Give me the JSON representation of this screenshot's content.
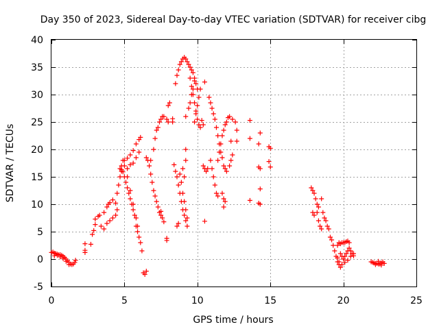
{
  "chart_data": {
    "type": "scatter",
    "title": "Day 350 of 2023, Sidereal Day-to-day VTEC variation (SDTVAR) for receiver cibg",
    "xlabel": "GPS time / hours",
    "ylabel": "SDTVAR / TECUs",
    "xlim": [
      0,
      25
    ],
    "ylim": [
      -5,
      40
    ],
    "xticks": [
      0,
      5,
      10,
      15,
      20,
      25
    ],
    "yticks": [
      -5,
      0,
      5,
      10,
      15,
      20,
      25,
      30,
      35,
      40
    ],
    "grid": true,
    "marker": "+",
    "color": "#ff0000",
    "series": [
      {
        "name": "sdtvar",
        "points": [
          [
            0.0,
            1.2
          ],
          [
            0.1,
            1.3
          ],
          [
            0.2,
            1.1
          ],
          [
            0.3,
            1.0
          ],
          [
            0.4,
            0.9
          ],
          [
            0.5,
            0.8
          ],
          [
            0.6,
            0.8
          ],
          [
            0.7,
            0.7
          ],
          [
            0.8,
            0.5
          ],
          [
            0.9,
            0.3
          ],
          [
            1.0,
            0.0
          ],
          [
            1.1,
            -0.3
          ],
          [
            1.2,
            -0.6
          ],
          [
            1.3,
            -0.9
          ],
          [
            1.4,
            -1.0
          ],
          [
            1.5,
            -0.9
          ],
          [
            1.6,
            -0.6
          ],
          [
            1.65,
            -0.2
          ],
          [
            0.2,
            0.6
          ],
          [
            0.4,
            0.7
          ],
          [
            0.6,
            0.4
          ],
          [
            0.8,
            0.1
          ],
          [
            1.0,
            -0.4
          ],
          [
            1.2,
            -1.0
          ],
          [
            2.3,
            1.2
          ],
          [
            2.3,
            1.6
          ],
          [
            2.3,
            2.8
          ],
          [
            2.7,
            2.7
          ],
          [
            2.8,
            4.5
          ],
          [
            2.9,
            5.2
          ],
          [
            3.0,
            6.3
          ],
          [
            3.0,
            7.3
          ],
          [
            3.2,
            7.8
          ],
          [
            3.3,
            8.0
          ],
          [
            3.4,
            6.0
          ],
          [
            3.6,
            8.5
          ],
          [
            3.8,
            9.5
          ],
          [
            3.9,
            10.0
          ],
          [
            4.0,
            10.3
          ],
          [
            4.2,
            10.8
          ],
          [
            3.6,
            5.5
          ],
          [
            3.8,
            6.5
          ],
          [
            4.0,
            7.0
          ],
          [
            4.2,
            7.5
          ],
          [
            4.4,
            10.2
          ],
          [
            4.5,
            12.0
          ],
          [
            4.6,
            13.5
          ],
          [
            4.7,
            15.0
          ],
          [
            4.8,
            16.0
          ],
          [
            4.4,
            8.0
          ],
          [
            4.5,
            9.0
          ],
          [
            4.8,
            17.0
          ],
          [
            5.0,
            18.0
          ],
          [
            5.2,
            18.4
          ],
          [
            5.4,
            19.0
          ],
          [
            5.6,
            19.8
          ],
          [
            5.8,
            21.0
          ],
          [
            6.0,
            21.8
          ],
          [
            6.1,
            22.2
          ],
          [
            5.2,
            16.5
          ],
          [
            5.4,
            17.2
          ],
          [
            5.6,
            17.5
          ],
          [
            5.8,
            18.5
          ],
          [
            6.0,
            19.5
          ],
          [
            4.7,
            16.5
          ],
          [
            4.8,
            16.3
          ],
          [
            4.9,
            15.9
          ],
          [
            5.0,
            15.0
          ],
          [
            5.1,
            14.0
          ],
          [
            5.2,
            13.0
          ],
          [
            5.3,
            12.0
          ],
          [
            5.4,
            11.0
          ],
          [
            5.5,
            10.0
          ],
          [
            5.6,
            9.0
          ],
          [
            5.7,
            8.0
          ],
          [
            5.8,
            6.0
          ],
          [
            5.9,
            5.0
          ],
          [
            6.0,
            4.0
          ],
          [
            6.1,
            3.0
          ],
          [
            6.2,
            1.5
          ],
          [
            4.9,
            18.0
          ],
          [
            5.0,
            17.0
          ],
          [
            5.2,
            15.0
          ],
          [
            5.4,
            12.5
          ],
          [
            5.6,
            10.0
          ],
          [
            5.8,
            7.5
          ],
          [
            5.9,
            6.0
          ],
          [
            6.3,
            -2.5
          ],
          [
            6.4,
            -2.8
          ],
          [
            6.5,
            -2.2
          ],
          [
            6.5,
            18.5
          ],
          [
            6.6,
            18.0
          ],
          [
            6.7,
            17.0
          ],
          [
            6.8,
            15.5
          ],
          [
            6.9,
            14.0
          ],
          [
            7.0,
            12.5
          ],
          [
            7.1,
            11.5
          ],
          [
            7.2,
            10.5
          ],
          [
            7.3,
            9.5
          ],
          [
            7.4,
            8.5
          ],
          [
            7.5,
            8.0
          ],
          [
            7.6,
            7.5
          ],
          [
            7.7,
            6.8
          ],
          [
            6.8,
            18.0
          ],
          [
            7.0,
            20.0
          ],
          [
            7.1,
            22.0
          ],
          [
            7.2,
            23.5
          ],
          [
            7.3,
            24.0
          ],
          [
            7.4,
            25.0
          ],
          [
            7.5,
            25.5
          ],
          [
            7.6,
            26.0
          ],
          [
            7.7,
            26.0
          ],
          [
            7.9,
            25.5
          ],
          [
            8.0,
            25.0
          ],
          [
            8.0,
            28.0
          ],
          [
            8.1,
            28.5
          ],
          [
            7.9,
            3.8
          ],
          [
            7.9,
            3.4
          ],
          [
            7.5,
            8.7
          ],
          [
            8.3,
            25.6
          ],
          [
            8.3,
            25.0
          ],
          [
            8.4,
            17.2
          ],
          [
            8.5,
            16.0
          ],
          [
            8.6,
            15.0
          ],
          [
            8.7,
            13.5
          ],
          [
            8.8,
            12.0
          ],
          [
            8.9,
            10.5
          ],
          [
            9.0,
            9.0
          ],
          [
            9.1,
            8.0
          ],
          [
            9.2,
            7.0
          ],
          [
            9.3,
            6.0
          ],
          [
            8.8,
            15.5
          ],
          [
            8.9,
            14.0
          ],
          [
            9.0,
            12.0
          ],
          [
            9.1,
            10.5
          ],
          [
            9.2,
            9.0
          ],
          [
            9.3,
            7.5
          ],
          [
            8.6,
            6.0
          ],
          [
            8.7,
            6.5
          ],
          [
            9.2,
            18.0
          ],
          [
            9.2,
            20.0
          ],
          [
            9.0,
            16.5
          ],
          [
            9.1,
            15.0
          ],
          [
            8.5,
            32.0
          ],
          [
            8.6,
            33.5
          ],
          [
            8.7,
            34.5
          ],
          [
            8.8,
            35.5
          ],
          [
            8.9,
            36.0
          ],
          [
            9.0,
            36.5
          ],
          [
            9.1,
            36.8
          ],
          [
            9.2,
            36.5
          ],
          [
            9.3,
            36.0
          ],
          [
            9.4,
            35.5
          ],
          [
            9.5,
            35.0
          ],
          [
            9.6,
            34.5
          ],
          [
            9.7,
            34.0
          ],
          [
            9.8,
            33.0
          ],
          [
            9.9,
            32.0
          ],
          [
            10.0,
            31.0
          ],
          [
            9.2,
            26.0
          ],
          [
            9.4,
            27.5
          ],
          [
            9.5,
            28.5
          ],
          [
            9.6,
            30.0
          ],
          [
            9.7,
            31.0
          ],
          [
            9.8,
            32.5
          ],
          [
            9.5,
            33.0
          ],
          [
            9.6,
            31.5
          ],
          [
            9.7,
            30.0
          ],
          [
            9.8,
            28.5
          ],
          [
            9.9,
            27.0
          ],
          [
            10.0,
            25.5
          ],
          [
            10.1,
            24.5
          ],
          [
            10.2,
            24.0
          ],
          [
            9.8,
            25.0
          ],
          [
            9.9,
            26.5
          ],
          [
            10.0,
            28.0
          ],
          [
            10.1,
            29.5
          ],
          [
            10.2,
            31.0
          ],
          [
            10.3,
            25.3
          ],
          [
            10.4,
            24.5
          ],
          [
            10.5,
            32.3
          ],
          [
            10.4,
            17.0
          ],
          [
            10.5,
            16.5
          ],
          [
            10.6,
            16.0
          ],
          [
            10.7,
            16.5
          ],
          [
            10.5,
            6.9
          ],
          [
            10.8,
            29.5
          ],
          [
            10.9,
            28.5
          ],
          [
            11.0,
            27.5
          ],
          [
            11.1,
            26.5
          ],
          [
            11.2,
            25.5
          ],
          [
            11.3,
            24.0
          ],
          [
            11.4,
            22.5
          ],
          [
            11.5,
            21.0
          ],
          [
            11.6,
            19.5
          ],
          [
            11.7,
            18.5
          ],
          [
            11.8,
            17.0
          ],
          [
            11.9,
            16.5
          ],
          [
            12.0,
            16.0
          ],
          [
            10.9,
            18.0
          ],
          [
            11.0,
            16.5
          ],
          [
            11.1,
            15.0
          ],
          [
            11.2,
            13.5
          ],
          [
            11.3,
            12.0
          ],
          [
            11.4,
            11.5
          ],
          [
            11.4,
            18.0
          ],
          [
            11.5,
            19.5
          ],
          [
            11.6,
            21.0
          ],
          [
            11.7,
            22.5
          ],
          [
            11.8,
            23.5
          ],
          [
            11.9,
            24.5
          ],
          [
            12.0,
            25.0
          ],
          [
            12.1,
            25.8
          ],
          [
            12.2,
            26.0
          ],
          [
            12.4,
            25.5
          ],
          [
            12.6,
            25.0
          ],
          [
            11.7,
            12.0
          ],
          [
            11.8,
            11.0
          ],
          [
            11.8,
            9.5
          ],
          [
            11.9,
            10.5
          ],
          [
            12.2,
            17.0
          ],
          [
            12.3,
            18.0
          ],
          [
            12.4,
            19.0
          ],
          [
            12.3,
            21.5
          ],
          [
            12.7,
            21.5
          ],
          [
            12.7,
            23.5
          ],
          [
            13.6,
            25.3
          ],
          [
            13.6,
            22.0
          ],
          [
            13.6,
            10.7
          ],
          [
            14.2,
            21.0
          ],
          [
            14.3,
            23.0
          ],
          [
            14.3,
            16.5
          ],
          [
            14.2,
            16.8
          ],
          [
            14.3,
            12.8
          ],
          [
            14.2,
            10.2
          ],
          [
            14.3,
            10.0
          ],
          [
            14.9,
            20.5
          ],
          [
            15.0,
            20.2
          ],
          [
            14.9,
            17.8
          ],
          [
            15.0,
            16.8
          ],
          [
            17.8,
            13.0
          ],
          [
            17.9,
            12.5
          ],
          [
            18.0,
            12.0
          ],
          [
            18.1,
            11.0
          ],
          [
            18.2,
            10.0
          ],
          [
            18.3,
            9.5
          ],
          [
            18.2,
            8.5
          ],
          [
            18.3,
            7.0
          ],
          [
            18.0,
            8.0
          ],
          [
            17.9,
            8.5
          ],
          [
            18.4,
            6.0
          ],
          [
            18.5,
            5.5
          ],
          [
            18.5,
            11.0
          ],
          [
            18.6,
            8.5
          ],
          [
            18.7,
            7.5
          ],
          [
            18.8,
            7.0
          ],
          [
            18.9,
            6.0
          ],
          [
            19.0,
            5.5
          ],
          [
            19.1,
            4.0
          ],
          [
            19.2,
            3.5
          ],
          [
            19.3,
            2.5
          ],
          [
            19.4,
            1.5
          ],
          [
            19.5,
            0.5
          ],
          [
            19.6,
            -0.5
          ],
          [
            19.7,
            -1.0
          ],
          [
            19.8,
            -1.5
          ],
          [
            19.6,
            2.5
          ],
          [
            19.7,
            3.0
          ],
          [
            19.8,
            2.8
          ],
          [
            19.9,
            3.0
          ],
          [
            20.0,
            3.0
          ],
          [
            20.1,
            3.0
          ],
          [
            20.2,
            3.2
          ],
          [
            20.3,
            3.3
          ],
          [
            20.4,
            3.0
          ],
          [
            19.8,
            1.0
          ],
          [
            19.9,
            0.5
          ],
          [
            20.0,
            0.0
          ],
          [
            20.1,
            0.5
          ],
          [
            20.2,
            1.0
          ],
          [
            20.3,
            1.5
          ],
          [
            20.4,
            2.0
          ],
          [
            20.5,
            1.5
          ],
          [
            20.6,
            1.0
          ],
          [
            19.6,
            0.2
          ],
          [
            19.7,
            -0.5
          ],
          [
            19.9,
            -1.0
          ],
          [
            20.1,
            -0.6
          ],
          [
            20.3,
            -0.2
          ],
          [
            20.5,
            0.5
          ],
          [
            20.7,
            1.0
          ],
          [
            20.7,
            0.6
          ],
          [
            21.9,
            -0.5
          ],
          [
            22.0,
            -0.6
          ],
          [
            22.1,
            -0.7
          ],
          [
            22.2,
            -0.8
          ],
          [
            22.3,
            -0.8
          ],
          [
            22.4,
            -0.9
          ],
          [
            22.5,
            -0.9
          ],
          [
            22.6,
            -0.7
          ],
          [
            22.7,
            -0.5
          ],
          [
            22.8,
            -0.8
          ],
          [
            22.2,
            -1.0
          ],
          [
            22.4,
            -0.4
          ],
          [
            22.6,
            -1.1
          ]
        ]
      }
    ]
  }
}
